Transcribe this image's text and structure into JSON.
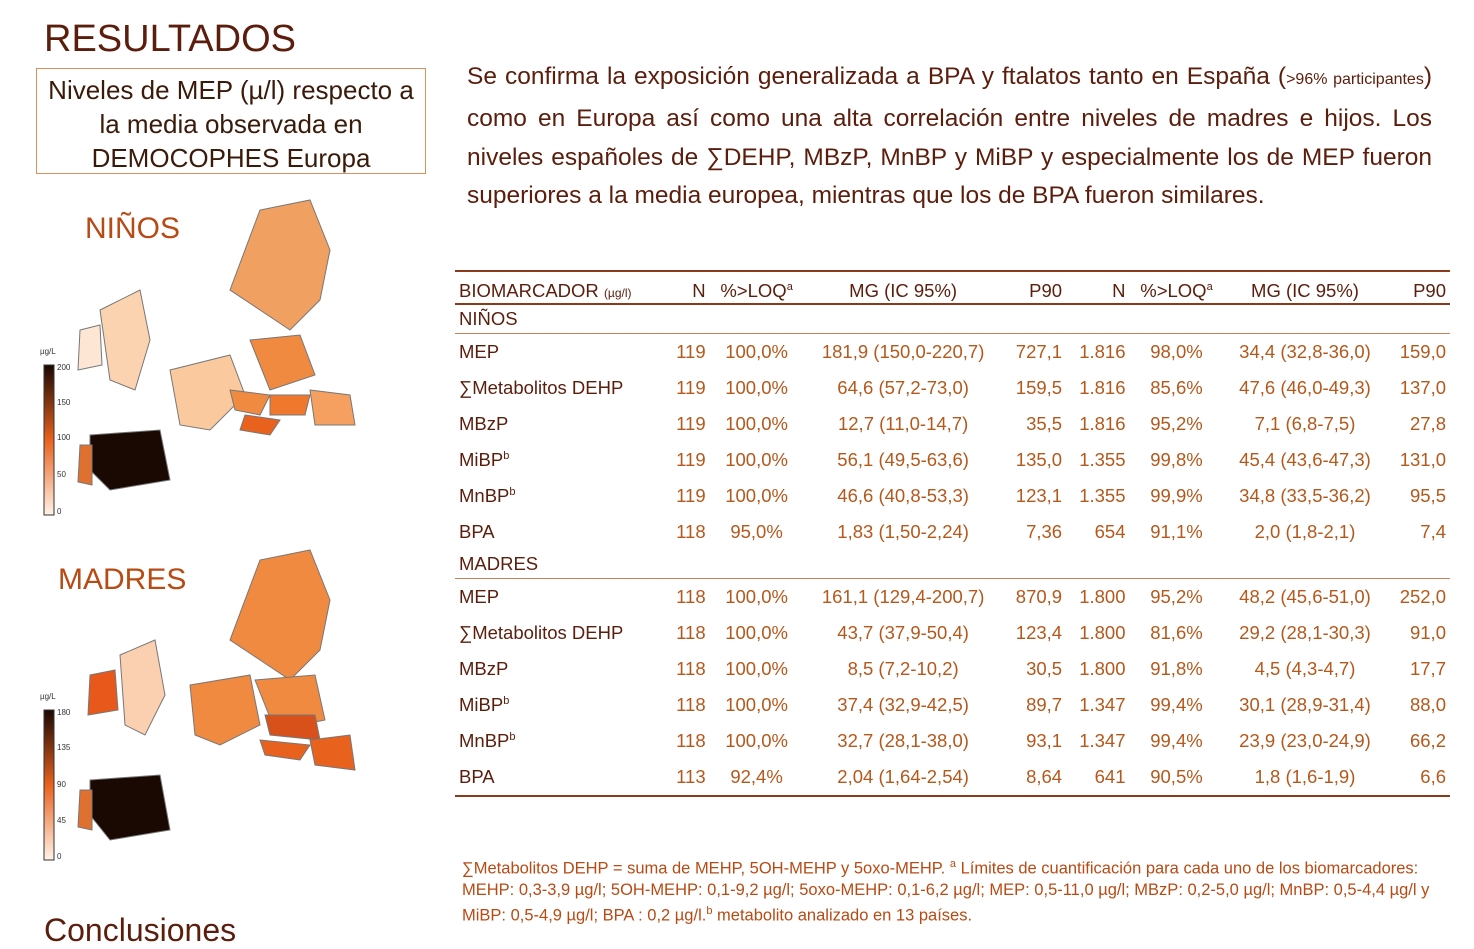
{
  "heading": "RESULTADOS",
  "caption": "Niveles de MEP (µ/l) respecto a la media observada en DEMOCOPHES Europa",
  "maps": [
    {
      "label": "NIÑOS",
      "unit": "µg/L",
      "ticks": [
        "200",
        "150",
        "100",
        "50",
        "0"
      ]
    },
    {
      "label": "MADRES",
      "unit": "µg/L",
      "ticks": [
        "180",
        "135",
        "90",
        "45",
        "0"
      ]
    }
  ],
  "paragraph": [
    {
      "text": "Se  confirma la exposición generalizada a BPA y ftalatos tanto en España ("
    },
    {
      "small": ">96% participantes"
    },
    {
      "text": ") como en Europa así como una alta correlación entre niveles de madres e hijos. Los niveles españoles de ∑DEHP, MBzP, MnBP y MiBP y especialmente los de MEP fueron superiores a la media europea, mientras que los de  BPA fueron similares."
    }
  ],
  "table": {
    "header": [
      {
        "text": "BIOMARCADOR",
        "small": "(µg/l)"
      },
      {
        "text": "N"
      },
      {
        "text": "%>LOQ",
        "sup": "a"
      },
      {
        "text": "MG (IC 95%)"
      },
      {
        "text": "P90"
      },
      {
        "text": "N"
      },
      {
        "text": "%>LOQ",
        "sup": "a"
      },
      {
        "text": "MG (IC 95%)"
      },
      {
        "text": "P90"
      }
    ],
    "sections": [
      {
        "title": "NIÑOS",
        "rows": [
          {
            "name": "MEP",
            "cells": [
              "119",
              "100,0%",
              "181,9 (150,0-220,7)",
              "727,1",
              "1.816",
              "98,0%",
              "34,4 (32,8-36,0)",
              "159,0"
            ]
          },
          {
            "name": "∑Metabolitos DEHP",
            "cells": [
              "119",
              "100,0%",
              "64,6 (57,2-73,0)",
              "159,5",
              "1.816",
              "85,6%",
              "47,6 (46,0-49,3)",
              "137,0"
            ]
          },
          {
            "name": "MBzP",
            "cells": [
              "119",
              "100,0%",
              "12,7 (11,0-14,7)",
              "35,5",
              "1.816",
              "95,2%",
              "7,1 (6,8-7,5)",
              "27,8"
            ]
          },
          {
            "name": "MiBP",
            "sup": "b",
            "cells": [
              "119",
              "100,0%",
              "56,1 (49,5-63,6)",
              "135,0",
              "1.355",
              "99,8%",
              "45,4 (43,6-47,3)",
              "131,0"
            ]
          },
          {
            "name": "MnBP",
            "sup": "b",
            "cells": [
              "119",
              "100,0%",
              "46,6 (40,8-53,3)",
              "123,1",
              "1.355",
              "99,9%",
              "34,8 (33,5-36,2)",
              "95,5"
            ]
          },
          {
            "name": "BPA",
            "cells": [
              "118",
              "95,0%",
              "1,83 (1,50-2,24)",
              "7,36",
              "654",
              "91,1%",
              "2,0 (1,8-2,1)",
              "7,4"
            ]
          }
        ]
      },
      {
        "title": "MADRES",
        "rows": [
          {
            "name": "MEP",
            "cells": [
              "118",
              "100,0%",
              "161,1 (129,4-200,7)",
              "870,9",
              "1.800",
              "95,2%",
              "48,2 (45,6-51,0)",
              "252,0"
            ]
          },
          {
            "name": "∑Metabolitos DEHP",
            "cells": [
              "118",
              "100,0%",
              "43,7 (37,9-50,4)",
              "123,4",
              "1.800",
              "81,6%",
              "29,2 (28,1-30,3)",
              "91,0"
            ]
          },
          {
            "name": "MBzP",
            "cells": [
              "118",
              "100,0%",
              "8,5 (7,2-10,2)",
              "30,5",
              "1.800",
              "91,8%",
              "4,5 (4,3-4,7)",
              "17,7"
            ]
          },
          {
            "name": "MiBP",
            "sup": "b",
            "cells": [
              "118",
              "100,0%",
              "37,4 (32,9-42,5)",
              "89,7",
              "1.347",
              "99,4%",
              "30,1 (28,9-31,4)",
              "88,0"
            ]
          },
          {
            "name": "MnBP",
            "sup": "b",
            "cells": [
              "118",
              "100,0%",
              "32,7 (28,1-38,0)",
              "93,1",
              "1.347",
              "99,4%",
              "23,9 (23,0-24,9)",
              "66,2"
            ]
          },
          {
            "name": "BPA",
            "cells": [
              "113",
              "92,4%",
              "2,04 (1,64-2,54)",
              "8,64",
              "641",
              "90,5%",
              "1,8 (1,6-1,9)",
              "6,6"
            ]
          }
        ]
      }
    ]
  },
  "footnote": [
    {
      "text": "∑Metabolitos DEHP = suma de MEHP, 5OH-MEHP y 5oxo-MEHP. "
    },
    {
      "sup": "a"
    },
    {
      "text": " Límites de cuantificación para cada uno de los biomarcadores: MEHP: 0,3-3,9 µg/l; 5OH-MEHP: 0,1-9,2 µg/l; 5oxo-MEHP: 0,1-6,2 µg/l; MEP: 0,5-11,0 µg/l; MBzP: 0,2-5,0 µg/l; MnBP: 0,5-4,4 µg/l y MiBP: 0,5-4,9 µg/l; BPA : 0,2 µg/l."
    },
    {
      "sup": "b"
    },
    {
      "text": " metabolito analizado en 13 países."
    }
  ],
  "next_heading": "Conclusiones"
}
